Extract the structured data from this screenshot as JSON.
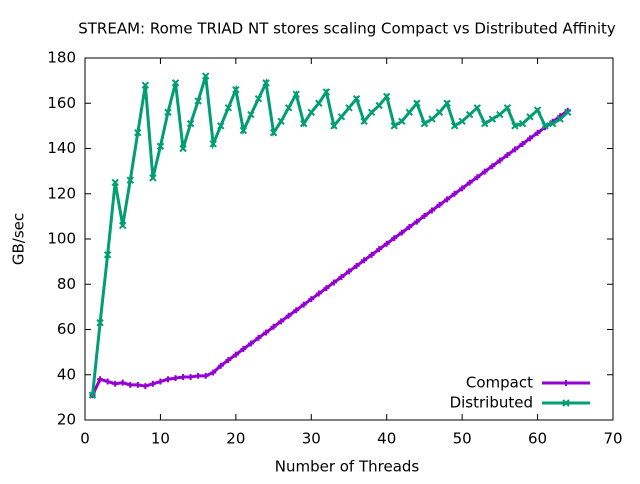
{
  "chart_data": {
    "type": "line",
    "title": "STREAM: Rome TRIAD NT stores scaling Compact vs Distributed Affinity",
    "x_label": "Number of Threads",
    "y_label": "GB/sec",
    "x": [
      1,
      2,
      3,
      4,
      5,
      6,
      7,
      8,
      9,
      10,
      11,
      12,
      13,
      14,
      15,
      16,
      17,
      18,
      19,
      20,
      21,
      22,
      23,
      24,
      25,
      26,
      27,
      28,
      29,
      30,
      31,
      32,
      33,
      34,
      35,
      36,
      37,
      38,
      39,
      40,
      41,
      42,
      43,
      44,
      45,
      46,
      47,
      48,
      49,
      50,
      51,
      52,
      53,
      54,
      55,
      56,
      57,
      58,
      59,
      60,
      61,
      62,
      63,
      64
    ],
    "series": [
      {
        "name": "Compact",
        "color": "#9400d3",
        "marker": "plus",
        "values": [
          31,
          38,
          37,
          36,
          36.5,
          35.5,
          35.5,
          35,
          36,
          37,
          38,
          38.5,
          39,
          39,
          39.5,
          39.5,
          41,
          44,
          46.5,
          48.9,
          51.4,
          53.8,
          56.3,
          58.7,
          61.2,
          63.6,
          66.1,
          68.5,
          71,
          73.4,
          75.9,
          78.3,
          80.8,
          83.2,
          85.7,
          88.1,
          90.6,
          93,
          95.5,
          97.9,
          100.4,
          102.8,
          105.3,
          107.7,
          110.2,
          112.6,
          115.1,
          117.5,
          120,
          122.4,
          124.9,
          127.3,
          129.8,
          132.2,
          134.7,
          137.1,
          139.6,
          142,
          144.5,
          146.9,
          149.4,
          151.8,
          154.3,
          156.7
        ]
      },
      {
        "name": "Distributed",
        "color": "#009e73",
        "marker": "cross",
        "values": [
          31,
          63,
          93,
          125,
          106,
          126,
          147,
          168,
          127,
          141,
          156,
          169,
          140,
          151,
          161,
          172,
          142,
          150,
          158,
          166,
          148,
          155,
          162,
          169,
          147,
          152,
          158,
          164,
          151,
          156,
          160,
          165,
          150,
          154,
          158,
          162,
          152,
          156,
          159,
          163,
          150,
          152,
          156,
          160,
          151,
          153,
          156,
          160,
          150,
          152,
          155,
          158,
          151,
          153,
          155,
          158,
          150,
          151,
          154,
          157,
          150,
          151,
          153,
          156
        ]
      }
    ],
    "xlim": [
      0,
      70
    ],
    "xticks": [
      0,
      10,
      20,
      30,
      40,
      50,
      60,
      70
    ],
    "ylim": [
      20,
      180
    ],
    "yticks": [
      20,
      40,
      60,
      80,
      100,
      120,
      140,
      160,
      180
    ],
    "grid": false,
    "legend_position": "bottom-right"
  }
}
